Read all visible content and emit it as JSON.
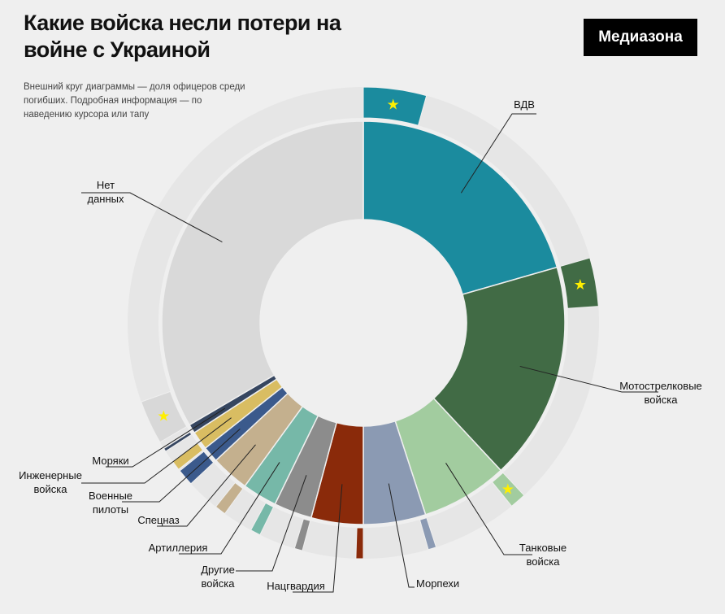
{
  "header": {
    "title": "Какие войска несли потери на войне с Украиной",
    "logo": "Медиазона",
    "subtitle": "Внешний круг диаграммы — доля офицеров среди погибших. Подробная информация — по наведению курсора или тапу"
  },
  "chart_data": {
    "type": "pie",
    "subtype": "double donut (inner: share of deaths by branch, outer: share of officers)",
    "unit": "degrees of 360 (estimated)",
    "categories": [
      "ВДВ",
      "Мотострелковые войска",
      "Танковые войска",
      "Морпехи",
      "Нацгвардия",
      "Другие войска",
      "Артиллерия",
      "Спецназ",
      "Военные пилоты",
      "Инженерные войска",
      "Моряки",
      "Нет данных"
    ],
    "label_lines": [
      [
        "ВДВ"
      ],
      [
        "Мотострелковые",
        "войска"
      ],
      [
        "Танковые",
        "войска"
      ],
      [
        "Морпехи"
      ],
      [
        "Нацгвардия"
      ],
      [
        "Другие",
        "войска"
      ],
      [
        "Артиллерия"
      ],
      [
        "Спецназ"
      ],
      [
        "Военные",
        "пилоты"
      ],
      [
        "Инженерные",
        "войска"
      ],
      [
        "Моряки"
      ],
      [
        "Нет",
        "данных"
      ]
    ],
    "values": [
      74,
      63,
      25,
      18,
      15,
      11,
      10,
      11,
      4.6,
      5.4,
      2.6,
      120.4
    ],
    "officer_share": [
      0.21,
      0.19,
      0.16,
      0.11,
      0.12,
      0.18,
      0.25,
      0.25,
      0.9,
      0.45,
      0.3,
      0.09
    ],
    "starred": [
      true,
      true,
      true,
      false,
      false,
      false,
      false,
      false,
      false,
      false,
      false,
      true
    ],
    "colors": [
      "#1b8b9e",
      "#416b45",
      "#a2cc9f",
      "#8b9ab3",
      "#8a2a0a",
      "#8c8c8c",
      "#76b8a8",
      "#c4b08e",
      "#3b5a8c",
      "#d9bd62",
      "#364660",
      "#d9d9d9"
    ],
    "outer_colors": [
      "#1b8b9e",
      "#416b45",
      "#a2cc9f",
      "#8b9ab3",
      "#8a2a0a",
      "#8c8c8c",
      "#76b8a8",
      "#c4b08e",
      "#3b5a8c",
      "#d9bd62",
      "#364660",
      "#d8d8d8"
    ]
  }
}
